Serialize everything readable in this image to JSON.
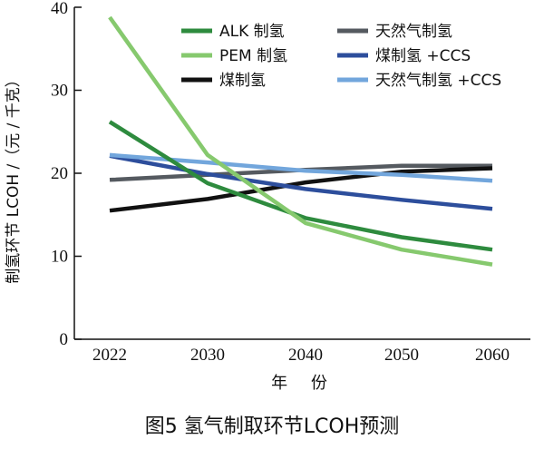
{
  "caption": "图5    氢气制取环节LCOH预测",
  "chart_data": {
    "type": "line",
    "x": [
      "2022",
      "2030",
      "2040",
      "2050",
      "2060"
    ],
    "xlabel": "年  份",
    "ylabel": "制氢环节 LCOH /（元 / 千克）",
    "ylim": [
      0,
      40
    ],
    "yticks": [
      0,
      10,
      20,
      30,
      40
    ],
    "grid": false,
    "legend": "top-right",
    "series": [
      {
        "name": "ALK 制氢",
        "color": "#2e8b3e",
        "values": [
          26.2,
          18.8,
          14.6,
          12.3,
          10.8
        ]
      },
      {
        "name": "PEM 制氢",
        "color": "#86c96e",
        "values": [
          38.8,
          22.2,
          14.0,
          10.8,
          9.0
        ]
      },
      {
        "name": "煤制氢",
        "color": "#111111",
        "values": [
          15.5,
          16.9,
          18.9,
          20.2,
          20.6
        ]
      },
      {
        "name": "天然气制氢",
        "color": "#555a60",
        "values": [
          19.2,
          19.8,
          20.4,
          20.9,
          20.9
        ]
      },
      {
        "name": "煤制氢 +CCS",
        "color": "#2d4e9c",
        "values": [
          22.1,
          19.9,
          18.1,
          16.8,
          15.7
        ]
      },
      {
        "name": "天然气制氢 +CCS",
        "color": "#72a6dc",
        "values": [
          22.2,
          21.3,
          20.3,
          19.8,
          19.1
        ]
      }
    ]
  }
}
